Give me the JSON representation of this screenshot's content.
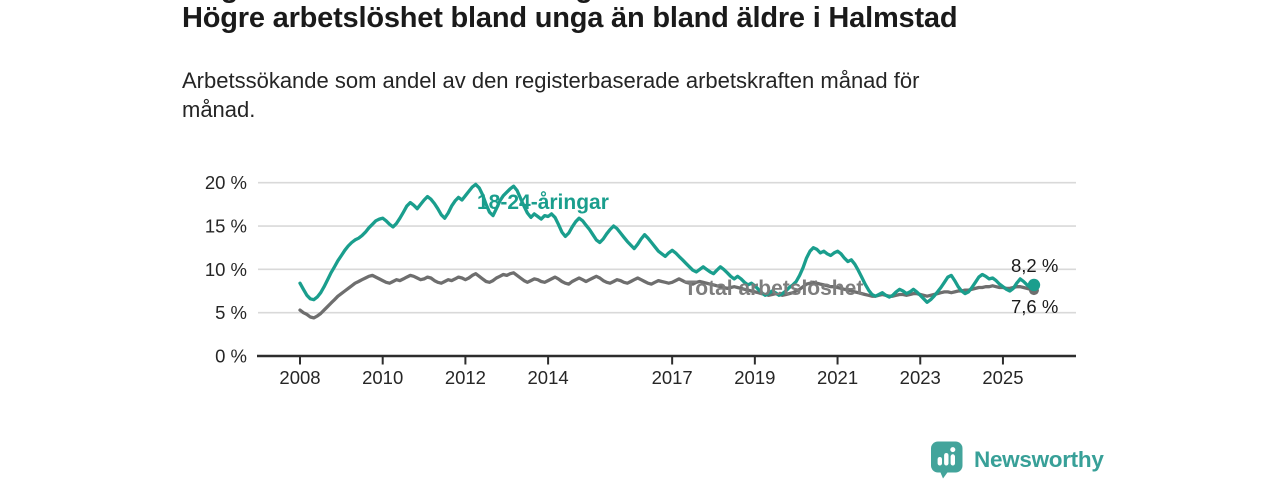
{
  "header": {
    "title": "Högre arbetslöshet bland unga än bland äldre i Halmstad",
    "subtitle": "Arbetssökande som andel av den registerbaserade arbetskraften månad för\nmånad."
  },
  "footer": {
    "brand": "Newsworthy",
    "logo_icon": "bar-chart-speech-bubble-icon",
    "brand_color": "#3aa098"
  },
  "colors": {
    "youth_line": "#1a9e8d",
    "total_line": "#6e6e6e",
    "total_label": "#7d7d7d",
    "grid": "#d9d9d9",
    "axis": "#2d2d2d",
    "tick_text": "#262626",
    "end_label_text": "#1a1a1a",
    "background": "#ffffff"
  },
  "chart_data": {
    "type": "line",
    "title": "Högre arbetslöshet bland unga än bland äldre i Halmstad",
    "subtitle": "Arbetssökande som andel av den registerbaserade arbetskraften månad för månad.",
    "unit": "%",
    "x_start_year": 2008,
    "x_resolution": "monthly",
    "x_end_label": "2025",
    "x_ticks": [
      2008,
      2010,
      2012,
      2014,
      2017,
      2019,
      2021,
      2023,
      2025
    ],
    "y_ticks": [
      0,
      5,
      10,
      15,
      20
    ],
    "y_tick_suffix": " %",
    "ylim": [
      0,
      22
    ],
    "grid": true,
    "legend_position": "inline-labels",
    "series": [
      {
        "name": "18-24-åringar",
        "color": "#1a9e8d",
        "end_label": "8,2 %",
        "end_value": 8.2,
        "values": [
          8.4,
          7.7,
          7.0,
          6.6,
          6.5,
          6.8,
          7.3,
          8.0,
          8.8,
          9.6,
          10.3,
          11.0,
          11.6,
          12.2,
          12.7,
          13.1,
          13.4,
          13.6,
          13.9,
          14.3,
          14.8,
          15.2,
          15.6,
          15.8,
          15.9,
          15.6,
          15.2,
          14.9,
          15.3,
          15.9,
          16.6,
          17.3,
          17.7,
          17.4,
          17.0,
          17.5,
          18.0,
          18.4,
          18.1,
          17.6,
          17.0,
          16.3,
          15.9,
          16.5,
          17.3,
          17.9,
          18.3,
          18.0,
          18.5,
          19.0,
          19.5,
          19.8,
          19.4,
          18.6,
          17.5,
          16.6,
          16.2,
          17.0,
          17.9,
          18.5,
          18.9,
          19.3,
          19.6,
          19.1,
          18.2,
          17.3,
          16.5,
          16.0,
          16.4,
          16.1,
          15.8,
          16.2,
          16.1,
          16.4,
          16.0,
          15.2,
          14.3,
          13.8,
          14.2,
          14.9,
          15.5,
          15.9,
          15.6,
          15.1,
          14.6,
          14.0,
          13.4,
          13.1,
          13.5,
          14.1,
          14.6,
          15.0,
          14.7,
          14.2,
          13.7,
          13.2,
          12.8,
          12.4,
          12.9,
          13.5,
          14.0,
          13.6,
          13.1,
          12.6,
          12.1,
          11.8,
          11.5,
          11.9,
          12.2,
          11.9,
          11.5,
          11.1,
          10.7,
          10.3,
          9.9,
          9.7,
          10.0,
          10.3,
          10.0,
          9.7,
          9.5,
          9.9,
          10.3,
          10.0,
          9.6,
          9.2,
          8.9,
          9.2,
          8.9,
          8.5,
          8.2,
          8.4,
          8.1,
          7.7,
          7.3,
          7.0,
          7.2,
          7.5,
          7.3,
          7.0,
          7.2,
          7.5,
          7.9,
          8.2,
          8.6,
          9.3,
          10.2,
          11.3,
          12.1,
          12.5,
          12.3,
          11.9,
          12.1,
          11.8,
          11.6,
          11.9,
          12.1,
          11.8,
          11.3,
          10.9,
          11.1,
          10.6,
          9.9,
          9.1,
          8.3,
          7.6,
          7.1,
          6.9,
          7.1,
          7.3,
          7.0,
          6.8,
          7.0,
          7.4,
          7.7,
          7.5,
          7.2,
          7.4,
          7.7,
          7.4,
          7.0,
          6.6,
          6.2,
          6.5,
          6.9,
          7.4,
          7.9,
          8.5,
          9.1,
          9.3,
          8.7,
          8.0,
          7.5,
          7.2,
          7.4,
          7.9,
          8.5,
          9.1,
          9.4,
          9.2,
          8.9,
          9.0,
          8.7,
          8.3,
          8.0,
          7.7,
          7.5,
          7.8,
          8.4,
          8.9,
          8.6,
          8.2,
          7.9,
          8.2
        ]
      },
      {
        "name": "Total arbetslöshet",
        "color": "#6e6e6e",
        "end_label": "7,6 %",
        "end_value": 7.6,
        "values": [
          5.3,
          5.0,
          4.8,
          4.5,
          4.4,
          4.6,
          4.9,
          5.3,
          5.7,
          6.1,
          6.5,
          6.9,
          7.2,
          7.5,
          7.8,
          8.1,
          8.4,
          8.6,
          8.8,
          9.0,
          9.2,
          9.3,
          9.1,
          8.9,
          8.7,
          8.5,
          8.4,
          8.6,
          8.8,
          8.7,
          8.9,
          9.1,
          9.3,
          9.2,
          9.0,
          8.8,
          8.9,
          9.1,
          9.0,
          8.7,
          8.5,
          8.4,
          8.6,
          8.8,
          8.7,
          8.9,
          9.1,
          9.0,
          8.8,
          9.0,
          9.3,
          9.5,
          9.2,
          8.9,
          8.6,
          8.5,
          8.7,
          9.0,
          9.2,
          9.4,
          9.3,
          9.5,
          9.6,
          9.3,
          9.0,
          8.7,
          8.5,
          8.7,
          8.9,
          8.8,
          8.6,
          8.5,
          8.7,
          8.9,
          9.1,
          8.9,
          8.6,
          8.4,
          8.3,
          8.6,
          8.8,
          9.0,
          8.8,
          8.6,
          8.8,
          9.0,
          9.2,
          9.0,
          8.7,
          8.5,
          8.4,
          8.6,
          8.8,
          8.7,
          8.5,
          8.4,
          8.6,
          8.8,
          9.0,
          8.8,
          8.6,
          8.4,
          8.3,
          8.5,
          8.7,
          8.6,
          8.5,
          8.4,
          8.5,
          8.7,
          8.9,
          8.7,
          8.5,
          8.4,
          8.3,
          8.5,
          8.6,
          8.5,
          8.4,
          8.3,
          8.2,
          8.1,
          8.0,
          7.9,
          7.8,
          7.9,
          8.0,
          7.9,
          7.8,
          7.7,
          7.6,
          7.5,
          7.4,
          7.3,
          7.2,
          7.1,
          7.0,
          7.1,
          7.2,
          7.1,
          7.0,
          7.1,
          7.2,
          7.3,
          7.5,
          7.7,
          8.0,
          8.3,
          8.4,
          8.5,
          8.4,
          8.3,
          8.2,
          8.1,
          8.0,
          8.0,
          7.9,
          7.8,
          7.7,
          7.6,
          7.5,
          7.4,
          7.3,
          7.2,
          7.1,
          7.0,
          6.9,
          6.9,
          7.0,
          7.1,
          7.0,
          6.9,
          6.9,
          7.0,
          7.1,
          7.1,
          7.0,
          7.1,
          7.2,
          7.2,
          7.1,
          7.0,
          6.9,
          7.0,
          7.1,
          7.2,
          7.3,
          7.4,
          7.4,
          7.3,
          7.4,
          7.5,
          7.5,
          7.6,
          7.6,
          7.7,
          7.8,
          7.9,
          7.9,
          8.0,
          8.0,
          8.1,
          8.0,
          7.9,
          7.9,
          7.8,
          7.8,
          7.9,
          8.0,
          8.0,
          7.9,
          7.8,
          7.7,
          7.6
        ]
      }
    ]
  }
}
